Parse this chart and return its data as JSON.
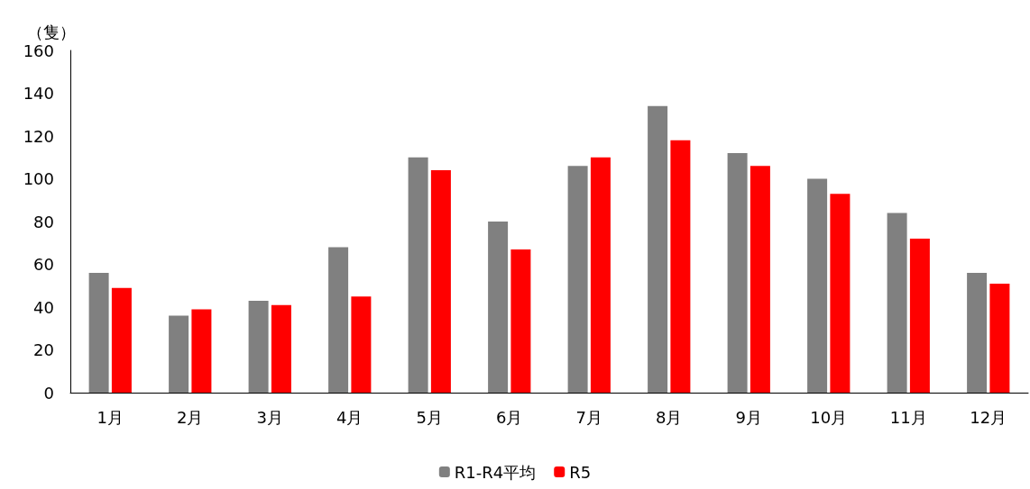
{
  "chart_data": {
    "type": "bar",
    "ylabel": "（隻）",
    "categories": [
      "1月",
      "2月",
      "3月",
      "4月",
      "5月",
      "6月",
      "7月",
      "8月",
      "9月",
      "10月",
      "11月",
      "12月"
    ],
    "series": [
      {
        "name": "R1-R4平均",
        "color": "#808080",
        "values": [
          56,
          36,
          43,
          68,
          110,
          80,
          106,
          134,
          112,
          100,
          84,
          56
        ]
      },
      {
        "name": "R5",
        "color": "#ff0000",
        "values": [
          49,
          39,
          41,
          45,
          104,
          67,
          110,
          118,
          106,
          93,
          72,
          51
        ]
      }
    ],
    "ylim": [
      0,
      160
    ],
    "yticks": [
      0,
      20,
      40,
      60,
      80,
      100,
      120,
      140,
      160
    ],
    "grid": false,
    "legend": "bottom"
  }
}
